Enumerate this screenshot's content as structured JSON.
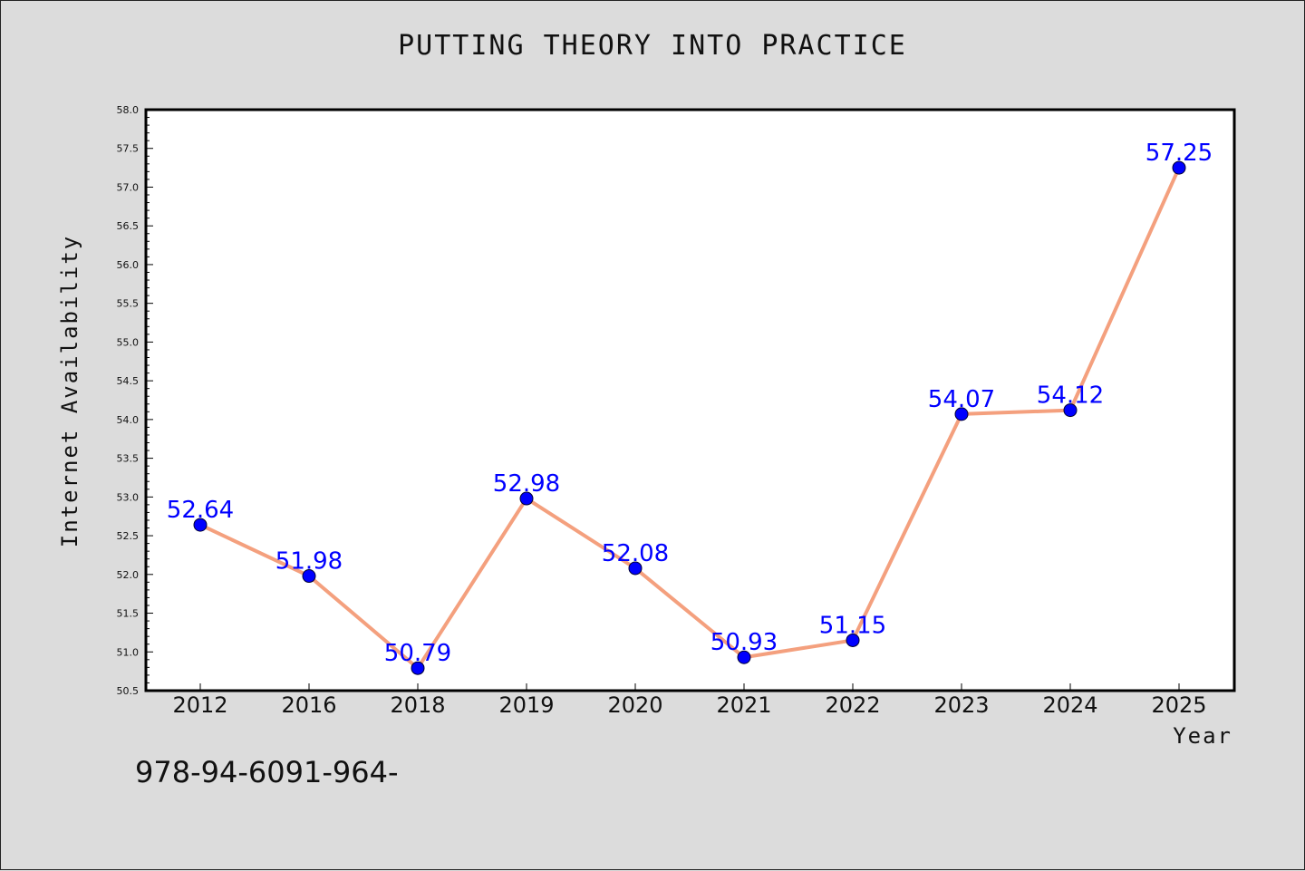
{
  "title": "PUTTING THEORY INTO PRACTICE",
  "footer": "978-94-6091-964-",
  "chart_data": {
    "type": "line",
    "title": "PUTTING THEORY INTO PRACTICE",
    "xlabel": "Year",
    "ylabel": "Internet Availability",
    "categories": [
      "2012",
      "2016",
      "2018",
      "2019",
      "2020",
      "2021",
      "2022",
      "2023",
      "2024",
      "2025"
    ],
    "values": [
      52.64,
      51.98,
      50.79,
      52.98,
      52.08,
      50.93,
      51.15,
      54.07,
      54.12,
      57.25
    ],
    "data_labels": [
      "52.64",
      "51.98",
      "50.79",
      "52.98",
      "52.08",
      "50.93",
      "51.15",
      "54.07",
      "54.12",
      "57.25"
    ],
    "ylim": [
      50.5,
      58.0
    ],
    "yticks": [
      "50.5",
      "51.0",
      "51.5",
      "52.0",
      "52.5",
      "53.0",
      "53.5",
      "54.0",
      "54.5",
      "55.0",
      "55.5",
      "56.0",
      "56.5",
      "57.0",
      "57.5",
      "58.0"
    ],
    "grid": false,
    "line_color": "#f4a07e",
    "marker_color": "#0000ff",
    "label_color": "#0000ff",
    "plot_background": "#ffffff",
    "page_background": "#dcdcdc"
  }
}
